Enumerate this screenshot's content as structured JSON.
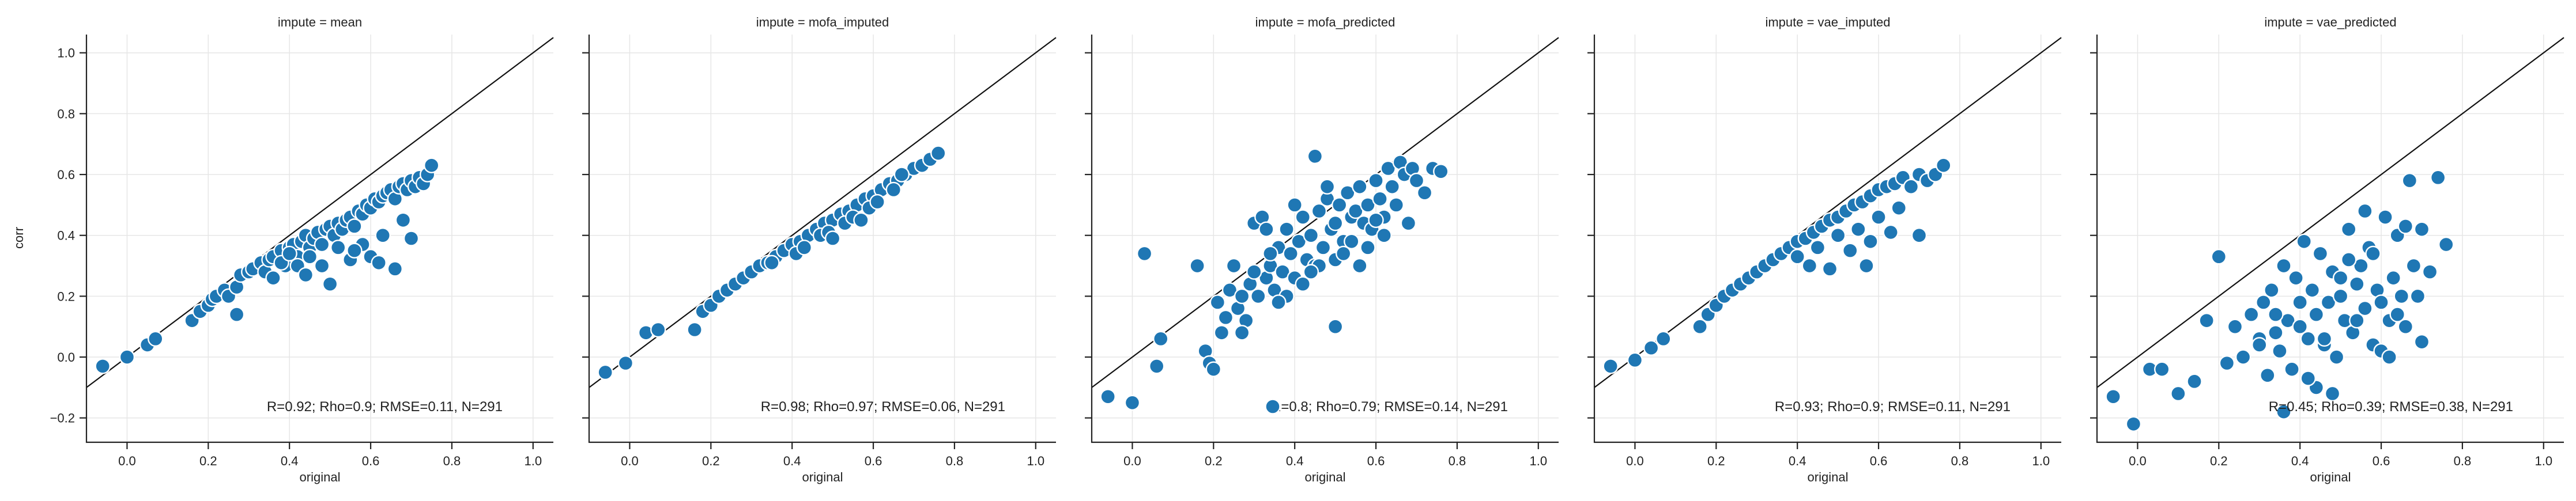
{
  "chart_data": {
    "type": "scatter",
    "layout": "facet-row",
    "shared_y": true,
    "point_color": "#1f77b4",
    "point_edge_color": "#ffffff",
    "diagonal_line": "y = x",
    "grid": true,
    "xlabel": "original",
    "ylabel": "corr",
    "xlim": [
      -0.1,
      1.05
    ],
    "ylim": [
      -0.28,
      1.06
    ],
    "xticks": [
      0.0,
      0.2,
      0.4,
      0.6,
      0.8,
      1.0
    ],
    "xtick_labels": [
      "0.0",
      "0.2",
      "0.4",
      "0.6",
      "0.8",
      "1.0"
    ],
    "yticks": [
      -0.2,
      0.0,
      0.2,
      0.4,
      0.6,
      0.8,
      1.0
    ],
    "ytick_labels": [
      "−0.2",
      "0.0",
      "0.2",
      "0.4",
      "0.6",
      "0.8",
      "1.0"
    ],
    "panels": [
      {
        "title": "impute = mean",
        "stats": "R=0.92; Rho=0.9; RMSE=0.11, N=291",
        "legend_marker": false,
        "x": [
          -0.06,
          0.0,
          0.05,
          0.07,
          0.16,
          0.18,
          0.2,
          0.21,
          0.22,
          0.24,
          0.25,
          0.27,
          0.28,
          0.3,
          0.31,
          0.33,
          0.34,
          0.35,
          0.36,
          0.38,
          0.39,
          0.4,
          0.41,
          0.42,
          0.43,
          0.44,
          0.45,
          0.46,
          0.47,
          0.48,
          0.49,
          0.5,
          0.51,
          0.52,
          0.53,
          0.54,
          0.55,
          0.56,
          0.57,
          0.58,
          0.59,
          0.6,
          0.61,
          0.62,
          0.63,
          0.64,
          0.65,
          0.66,
          0.67,
          0.68,
          0.69,
          0.7,
          0.71,
          0.72,
          0.73,
          0.74,
          0.75,
          0.38,
          0.42,
          0.45,
          0.48,
          0.52,
          0.55,
          0.58,
          0.6,
          0.63,
          0.66,
          0.7,
          0.44,
          0.5,
          0.56,
          0.62,
          0.68,
          0.4,
          0.36,
          0.27
        ],
        "y": [
          -0.03,
          0.0,
          0.04,
          0.06,
          0.12,
          0.15,
          0.17,
          0.19,
          0.2,
          0.22,
          0.2,
          0.23,
          0.27,
          0.28,
          0.29,
          0.31,
          0.28,
          0.32,
          0.33,
          0.35,
          0.3,
          0.36,
          0.37,
          0.33,
          0.38,
          0.4,
          0.36,
          0.39,
          0.41,
          0.37,
          0.42,
          0.43,
          0.4,
          0.44,
          0.42,
          0.45,
          0.46,
          0.43,
          0.48,
          0.47,
          0.5,
          0.49,
          0.52,
          0.51,
          0.53,
          0.54,
          0.55,
          0.52,
          0.56,
          0.57,
          0.55,
          0.58,
          0.56,
          0.59,
          0.57,
          0.6,
          0.63,
          0.31,
          0.3,
          0.33,
          0.3,
          0.36,
          0.32,
          0.37,
          0.33,
          0.4,
          0.29,
          0.39,
          0.27,
          0.24,
          0.35,
          0.31,
          0.45,
          0.34,
          0.26,
          0.14
        ]
      },
      {
        "title": "impute = mofa_imputed",
        "stats": "R=0.98; Rho=0.97; RMSE=0.06, N=291",
        "legend_marker": false,
        "x": [
          -0.06,
          -0.01,
          0.04,
          0.07,
          0.16,
          0.18,
          0.2,
          0.22,
          0.24,
          0.26,
          0.28,
          0.3,
          0.32,
          0.34,
          0.36,
          0.38,
          0.4,
          0.42,
          0.44,
          0.46,
          0.48,
          0.5,
          0.52,
          0.54,
          0.56,
          0.58,
          0.6,
          0.62,
          0.64,
          0.66,
          0.68,
          0.7,
          0.72,
          0.74,
          0.76,
          0.35,
          0.41,
          0.47,
          0.53,
          0.59,
          0.65,
          0.43,
          0.49,
          0.55,
          0.61,
          0.67,
          0.5,
          0.57
        ],
        "y": [
          -0.05,
          -0.02,
          0.08,
          0.09,
          0.09,
          0.15,
          0.17,
          0.2,
          0.22,
          0.24,
          0.26,
          0.28,
          0.3,
          0.31,
          0.33,
          0.35,
          0.37,
          0.38,
          0.4,
          0.42,
          0.44,
          0.45,
          0.47,
          0.48,
          0.5,
          0.52,
          0.53,
          0.55,
          0.57,
          0.58,
          0.6,
          0.62,
          0.63,
          0.65,
          0.67,
          0.31,
          0.34,
          0.4,
          0.44,
          0.49,
          0.55,
          0.36,
          0.41,
          0.46,
          0.51,
          0.6,
          0.39,
          0.45
        ]
      },
      {
        "title": "impute = mofa_predicted",
        "stats": "R=0.8; Rho=0.79; RMSE=0.14, N=291",
        "legend_marker": true,
        "x": [
          -0.06,
          0.0,
          0.03,
          0.06,
          0.07,
          0.16,
          0.18,
          0.19,
          0.2,
          0.21,
          0.22,
          0.23,
          0.24,
          0.25,
          0.26,
          0.27,
          0.28,
          0.29,
          0.3,
          0.31,
          0.32,
          0.33,
          0.34,
          0.35,
          0.36,
          0.37,
          0.38,
          0.39,
          0.4,
          0.41,
          0.42,
          0.43,
          0.44,
          0.45,
          0.46,
          0.47,
          0.48,
          0.49,
          0.5,
          0.51,
          0.52,
          0.53,
          0.54,
          0.55,
          0.56,
          0.57,
          0.58,
          0.59,
          0.6,
          0.61,
          0.62,
          0.63,
          0.64,
          0.65,
          0.66,
          0.67,
          0.68,
          0.69,
          0.7,
          0.72,
          0.74,
          0.76,
          0.3,
          0.34,
          0.38,
          0.42,
          0.46,
          0.5,
          0.54,
          0.58,
          0.62,
          0.36,
          0.44,
          0.52,
          0.6,
          0.4,
          0.48,
          0.56,
          0.33,
          0.27,
          0.45,
          0.5
        ],
        "y": [
          -0.13,
          -0.15,
          0.34,
          -0.03,
          0.06,
          0.3,
          0.02,
          -0.02,
          -0.04,
          0.18,
          0.08,
          0.13,
          0.22,
          0.3,
          0.16,
          0.2,
          0.12,
          0.24,
          0.44,
          0.2,
          0.46,
          0.26,
          0.3,
          0.22,
          0.36,
          0.28,
          0.42,
          0.34,
          0.26,
          0.38,
          0.46,
          0.32,
          0.4,
          0.3,
          0.48,
          0.36,
          0.52,
          0.42,
          0.44,
          0.5,
          0.38,
          0.54,
          0.46,
          0.48,
          0.56,
          0.44,
          0.5,
          0.42,
          0.58,
          0.52,
          0.46,
          0.62,
          0.56,
          0.5,
          0.64,
          0.6,
          0.44,
          0.62,
          0.58,
          0.54,
          0.62,
          0.61,
          0.28,
          0.34,
          0.2,
          0.24,
          0.3,
          0.32,
          0.38,
          0.36,
          0.4,
          0.18,
          0.28,
          0.34,
          0.45,
          0.5,
          0.56,
          0.3,
          0.42,
          0.08,
          0.66,
          0.1
        ]
      },
      {
        "title": "impute = vae_imputed",
        "stats": "R=0.93; Rho=0.9; RMSE=0.11, N=291",
        "legend_marker": false,
        "x": [
          -0.06,
          0.0,
          0.04,
          0.07,
          0.16,
          0.18,
          0.2,
          0.22,
          0.24,
          0.26,
          0.28,
          0.3,
          0.32,
          0.34,
          0.36,
          0.38,
          0.4,
          0.42,
          0.44,
          0.46,
          0.48,
          0.5,
          0.52,
          0.54,
          0.56,
          0.58,
          0.6,
          0.62,
          0.64,
          0.66,
          0.68,
          0.7,
          0.72,
          0.74,
          0.76,
          0.4,
          0.45,
          0.5,
          0.55,
          0.6,
          0.65,
          0.7,
          0.43,
          0.48,
          0.53,
          0.58,
          0.63,
          0.57
        ],
        "y": [
          -0.03,
          -0.01,
          0.03,
          0.06,
          0.1,
          0.14,
          0.17,
          0.2,
          0.22,
          0.24,
          0.26,
          0.28,
          0.3,
          0.32,
          0.34,
          0.36,
          0.38,
          0.39,
          0.41,
          0.43,
          0.45,
          0.46,
          0.48,
          0.5,
          0.51,
          0.53,
          0.55,
          0.56,
          0.57,
          0.59,
          0.56,
          0.6,
          0.58,
          0.6,
          0.63,
          0.33,
          0.36,
          0.4,
          0.42,
          0.46,
          0.49,
          0.4,
          0.3,
          0.29,
          0.35,
          0.38,
          0.41,
          0.3
        ]
      },
      {
        "title": "impute = vae_predicted",
        "stats": "R=0.45; Rho=0.39; RMSE=0.38, N=291",
        "legend_marker": false,
        "x": [
          -0.06,
          -0.01,
          0.03,
          0.06,
          0.1,
          0.14,
          0.17,
          0.2,
          0.22,
          0.24,
          0.26,
          0.28,
          0.3,
          0.31,
          0.32,
          0.33,
          0.34,
          0.35,
          0.36,
          0.37,
          0.38,
          0.39,
          0.4,
          0.41,
          0.42,
          0.43,
          0.44,
          0.45,
          0.46,
          0.47,
          0.48,
          0.49,
          0.5,
          0.51,
          0.52,
          0.53,
          0.54,
          0.55,
          0.56,
          0.57,
          0.58,
          0.59,
          0.6,
          0.61,
          0.62,
          0.63,
          0.64,
          0.65,
          0.66,
          0.67,
          0.68,
          0.69,
          0.7,
          0.72,
          0.74,
          0.76,
          0.36,
          0.44,
          0.48,
          0.52,
          0.56,
          0.6,
          0.64,
          0.4,
          0.46,
          0.5,
          0.54,
          0.58,
          0.62,
          0.42,
          0.3,
          0.34,
          0.66,
          0.7
        ],
        "y": [
          -0.13,
          -0.22,
          -0.04,
          -0.04,
          -0.12,
          -0.08,
          0.12,
          0.33,
          -0.02,
          0.1,
          0.0,
          0.14,
          0.06,
          0.18,
          -0.06,
          0.22,
          0.08,
          0.02,
          0.3,
          0.12,
          -0.04,
          0.26,
          0.1,
          0.38,
          0.06,
          0.22,
          0.14,
          0.34,
          0.04,
          0.18,
          0.28,
          0.0,
          0.2,
          0.12,
          0.42,
          0.08,
          0.24,
          0.3,
          0.16,
          0.36,
          0.04,
          0.22,
          0.18,
          0.46,
          0.12,
          0.26,
          0.4,
          0.2,
          0.1,
          0.58,
          0.3,
          0.2,
          0.42,
          0.28,
          0.59,
          0.37,
          -0.18,
          -0.1,
          -0.12,
          0.32,
          0.48,
          0.02,
          0.14,
          0.18,
          0.06,
          0.26,
          0.12,
          0.34,
          0.0,
          -0.07,
          0.04,
          0.14,
          0.43,
          0.05
        ]
      }
    ]
  }
}
